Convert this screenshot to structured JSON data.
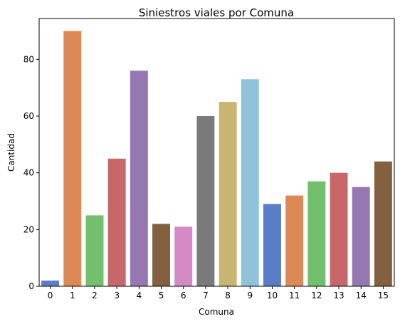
{
  "chart_data": {
    "type": "bar",
    "title": "Siniestros viales por Comuna",
    "xlabel": "Comuna",
    "ylabel": "Cantidad",
    "categories": [
      "0",
      "1",
      "2",
      "3",
      "4",
      "5",
      "6",
      "7",
      "8",
      "9",
      "10",
      "11",
      "12",
      "13",
      "14",
      "15"
    ],
    "values": [
      2,
      90,
      25,
      45,
      76,
      22,
      21,
      60,
      65,
      73,
      29,
      32,
      37,
      40,
      35,
      44
    ],
    "ylim": [
      0,
      94.4
    ],
    "yticks": [
      0,
      20,
      40,
      60,
      80
    ],
    "grid": false,
    "legend": "none",
    "palette": [
      "#5a7dc8",
      "#dd8957",
      "#72c06e",
      "#c8676a",
      "#9578b2",
      "#83613f",
      "#d48ac4",
      "#7a7a7a",
      "#c9b572",
      "#8ec3d9"
    ]
  }
}
